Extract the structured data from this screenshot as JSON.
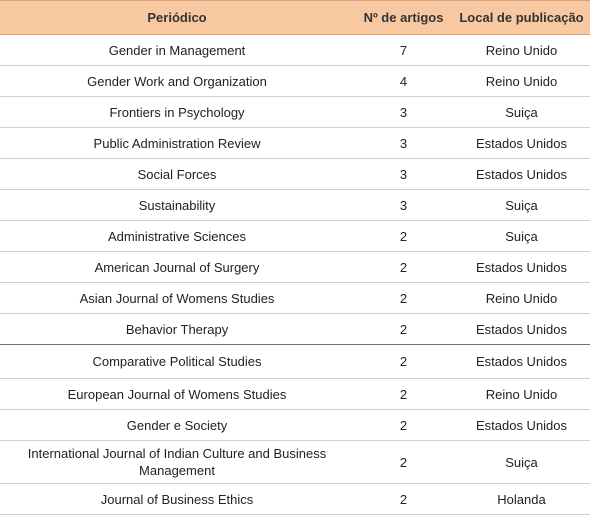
{
  "table": {
    "header": [
      "Periódico",
      "Nº de artigos",
      "Local de publicação"
    ],
    "rows": [
      [
        "Gender in Management",
        7,
        "Reino Unido"
      ],
      [
        "Gender Work and Organization",
        4,
        "Reino Unido"
      ],
      [
        "Frontiers in Psychology",
        3,
        "Suiça"
      ],
      [
        "Public Administration Review",
        3,
        "Estados Unidos"
      ],
      [
        "Social Forces",
        3,
        "Estados Unidos"
      ],
      [
        "Sustainability",
        3,
        "Suiça"
      ],
      [
        "Administrative Sciences",
        2,
        "Suiça"
      ],
      [
        "American Journal of Surgery",
        2,
        "Estados Unidos"
      ],
      [
        "Asian Journal of Womens Studies",
        2,
        "Reino Unido"
      ],
      [
        "Behavior Therapy",
        2,
        "Estados Unidos"
      ],
      [
        "Comparative Political Studies",
        2,
        "Estados Unidos"
      ],
      [
        "European Journal of Womens Studies",
        2,
        "Reino Unido"
      ],
      [
        "Gender e Society",
        2,
        "Estados Unidos"
      ],
      [
        "International Journal of Indian Culture and Business Management",
        2,
        "Suiça"
      ],
      [
        "Journal of Business Ethics",
        2,
        "Holanda"
      ]
    ]
  }
}
